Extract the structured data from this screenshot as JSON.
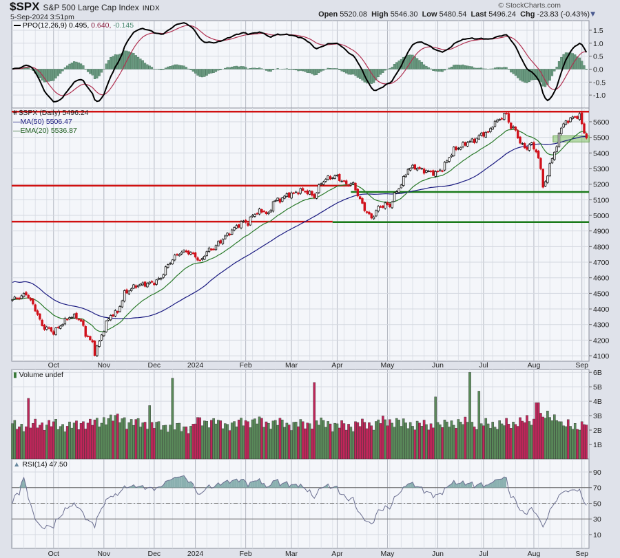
{
  "header": {
    "symbol": "$SPX",
    "name": "S&P 500 Large Cap Index",
    "exchange": "INDX",
    "datetime": "5-Sep-2024 3:51pm",
    "brand": "© StockCharts.com",
    "open_label": "Open",
    "open": "5520.08",
    "high_label": "High",
    "high": "5546.30",
    "low_label": "Low",
    "low": "5480.54",
    "last_label": "Last",
    "last": "5496.24",
    "chg_label": "Chg",
    "chg": "-23.83 (-0.43%)",
    "menu_icon": "caret-down-icon"
  },
  "legends": {
    "ppo_name": "PPO(12,26,9)",
    "ppo_value": "0.495,",
    "ppo_signal": "0.640,",
    "ppo_hist": "-0.145",
    "price": "$SPX (Daily) 5496.24",
    "ma50": "MA(50) 5506.47",
    "ema20": "EMA(20) 5536.87",
    "volume": "Volume undef",
    "rsi": "RSI(14) 47.50"
  },
  "colors": {
    "up": "#111111",
    "down": "#d0101a",
    "vol_up": "#5a8a5a",
    "vol_down": "#c0265a",
    "ma50": "#1a1a80",
    "ema20": "#2a7a2a",
    "ppo": "#000000",
    "signal": "#b03050",
    "hist": "#6a9a80",
    "rsi": "#6a6e90",
    "level_red": "#d01010",
    "level_green": "#1a7a1a"
  },
  "chart_data": [
    {
      "type": "candlestick",
      "title": "$SPX (Daily)",
      "x_unit": "trading day index",
      "x_ticks": [
        {
          "label": "Oct",
          "t": 18
        },
        {
          "label": "Nov",
          "t": 40
        },
        {
          "label": "Dec",
          "t": 62
        },
        {
          "label": "2024",
          "t": 80
        },
        {
          "label": "Feb",
          "t": 102
        },
        {
          "label": "Mar",
          "t": 122
        },
        {
          "label": "Apr",
          "t": 142
        },
        {
          "label": "May",
          "t": 164
        },
        {
          "label": "Jun",
          "t": 186
        },
        {
          "label": "Jul",
          "t": 206
        },
        {
          "label": "Aug",
          "t": 228
        },
        {
          "label": "Sep",
          "t": 249
        }
      ],
      "days": 252,
      "ylim": [
        4065,
        5688
      ],
      "y_ticks": [
        4100,
        4200,
        4300,
        4400,
        4500,
        4600,
        4700,
        4800,
        4900,
        5000,
        5100,
        5200,
        5300,
        5400,
        5500,
        5600
      ],
      "close_keypoints": [
        [
          0,
          4460
        ],
        [
          4,
          4480
        ],
        [
          6,
          4500
        ],
        [
          8,
          4450
        ],
        [
          10,
          4400
        ],
        [
          13,
          4290
        ],
        [
          16,
          4270
        ],
        [
          18,
          4250
        ],
        [
          22,
          4310
        ],
        [
          25,
          4350
        ],
        [
          28,
          4350
        ],
        [
          30,
          4320
        ],
        [
          32,
          4240
        ],
        [
          35,
          4180
        ],
        [
          36,
          4120
        ],
        [
          38,
          4190
        ],
        [
          41,
          4310
        ],
        [
          43,
          4360
        ],
        [
          46,
          4380
        ],
        [
          49,
          4500
        ],
        [
          54,
          4550
        ],
        [
          58,
          4560
        ],
        [
          62,
          4570
        ],
        [
          65,
          4600
        ],
        [
          67,
          4660
        ],
        [
          70,
          4720
        ],
        [
          73,
          4760
        ],
        [
          76,
          4770
        ],
        [
          80,
          4740
        ],
        [
          82,
          4700
        ],
        [
          85,
          4770
        ],
        [
          88,
          4790
        ],
        [
          92,
          4850
        ],
        [
          95,
          4890
        ],
        [
          98,
          4930
        ],
        [
          101,
          4960
        ],
        [
          103,
          4950
        ],
        [
          105,
          5000
        ],
        [
          107,
          5020
        ],
        [
          110,
          5030
        ],
        [
          112,
          5000
        ],
        [
          114,
          5090
        ],
        [
          117,
          5100
        ],
        [
          120,
          5130
        ],
        [
          123,
          5140
        ],
        [
          126,
          5160
        ],
        [
          129,
          5150
        ],
        [
          132,
          5120
        ],
        [
          135,
          5210
        ],
        [
          138,
          5240
        ],
        [
          142,
          5250
        ],
        [
          144,
          5220
        ],
        [
          146,
          5200
        ],
        [
          149,
          5200
        ],
        [
          152,
          5100
        ],
        [
          154,
          5040
        ],
        [
          157,
          4980
        ],
        [
          160,
          5050
        ],
        [
          163,
          5070
        ],
        [
          165,
          5060
        ],
        [
          167,
          5130
        ],
        [
          170,
          5200
        ],
        [
          173,
          5300
        ],
        [
          176,
          5310
        ],
        [
          179,
          5290
        ],
        [
          182,
          5280
        ],
        [
          185,
          5270
        ],
        [
          188,
          5300
        ],
        [
          190,
          5350
        ],
        [
          193,
          5420
        ],
        [
          196,
          5440
        ],
        [
          199,
          5470
        ],
        [
          202,
          5480
        ],
        [
          205,
          5520
        ],
        [
          208,
          5530
        ],
        [
          210,
          5580
        ],
        [
          213,
          5620
        ],
        [
          216,
          5650
        ],
        [
          218,
          5560
        ],
        [
          220,
          5550
        ],
        [
          222,
          5460
        ],
        [
          225,
          5430
        ],
        [
          227,
          5460
        ],
        [
          229,
          5410
        ],
        [
          231,
          5300
        ],
        [
          232,
          5190
        ],
        [
          234,
          5240
        ],
        [
          235,
          5340
        ],
        [
          238,
          5430
        ],
        [
          239,
          5540
        ],
        [
          242,
          5600
        ],
        [
          244,
          5620
        ],
        [
          246,
          5630
        ],
        [
          248,
          5640
        ],
        [
          250,
          5530
        ],
        [
          251,
          5496
        ]
      ],
      "levels": [
        {
          "value": 5665,
          "color": "red",
          "from": 0,
          "to": 251
        },
        {
          "value": 5190,
          "color": "red",
          "from": 0,
          "to": 148
        },
        {
          "value": 5150,
          "color": "green",
          "from": 148,
          "to": 251
        },
        {
          "value": 4960,
          "color": "red",
          "from": 0,
          "to": 140
        },
        {
          "value": 4957,
          "color": "green",
          "from": 140,
          "to": 251
        }
      ],
      "zone": {
        "low": 5470,
        "high": 5510,
        "from": 237,
        "to": 251
      },
      "overlays": [
        "MA(50)",
        "EMA(20)"
      ]
    },
    {
      "type": "line",
      "title": "PPO(12,26,9)",
      "ylim": [
        -1.5,
        1.87
      ],
      "y_ticks": [
        1.5,
        1.0,
        0.5,
        0.0,
        -0.5,
        -1.0
      ],
      "y_tick_labels": [
        "1.5",
        "1.0",
        "0.5",
        "0.0",
        "-0.5",
        "-1.0"
      ],
      "last": {
        "ppo": 0.495,
        "signal": 0.64,
        "hist": -0.145
      }
    },
    {
      "type": "bar",
      "title": "Volume",
      "unit": "B",
      "ylim": [
        0,
        6.2
      ],
      "y_ticks": [
        1,
        2,
        3,
        4,
        5,
        6
      ],
      "y_tick_labels": [
        "1B",
        "2B",
        "3B",
        "4B",
        "5B",
        "6B"
      ],
      "base_every_10_days": [
        2.3,
        2.4,
        2.3,
        2.5,
        2.8,
        2.5,
        2.3,
        2.2,
        2.6,
        2.4,
        2.6,
        2.5,
        2.4,
        2.5,
        2.3,
        2.4,
        2.6,
        2.4,
        2.3,
        2.5,
        2.4,
        2.4,
        2.6,
        2.9,
        2.3,
        2.4
      ],
      "spikes": [
        [
          7,
          4.2
        ],
        [
          60,
          3.7
        ],
        [
          70,
          5.6
        ],
        [
          132,
          5.3
        ],
        [
          185,
          4.3
        ],
        [
          200,
          6.0
        ],
        [
          204,
          4.7
        ],
        [
          229,
          3.9
        ],
        [
          230,
          3.9
        ]
      ]
    },
    {
      "type": "line",
      "title": "RSI(14)",
      "ylim": [
        -7.6,
        106.7
      ],
      "y_ticks": [
        10,
        30,
        50,
        70,
        90
      ],
      "y_tick_labels": [
        "10",
        "30",
        "50",
        "70",
        "90"
      ],
      "last": 47.5
    }
  ]
}
